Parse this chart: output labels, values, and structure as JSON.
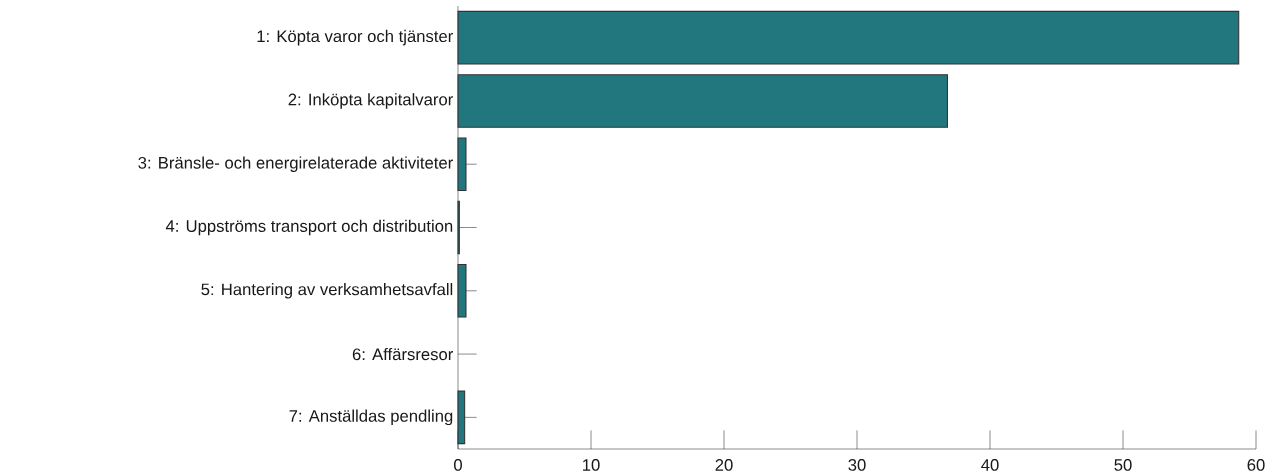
{
  "chart_data": {
    "type": "bar",
    "orientation": "horizontal",
    "categories": [
      "1: Köpta varor och tjänster",
      "2: Inköpta kapitalvaror",
      "3: Bränsle- och energirelaterade aktiviteter",
      "4: Uppströms transport och distribution",
      "5: Hantering av verksamhetsavfall",
      "6: Affärsresor",
      "7: Anställdas pendling"
    ],
    "values": [
      58.7,
      36.8,
      0.6,
      0.1,
      0.6,
      null,
      0.5
    ],
    "color": "#22777f",
    "xlim": [
      0,
      60
    ],
    "xticks": [
      0,
      10,
      20,
      30,
      40,
      50,
      60
    ]
  }
}
